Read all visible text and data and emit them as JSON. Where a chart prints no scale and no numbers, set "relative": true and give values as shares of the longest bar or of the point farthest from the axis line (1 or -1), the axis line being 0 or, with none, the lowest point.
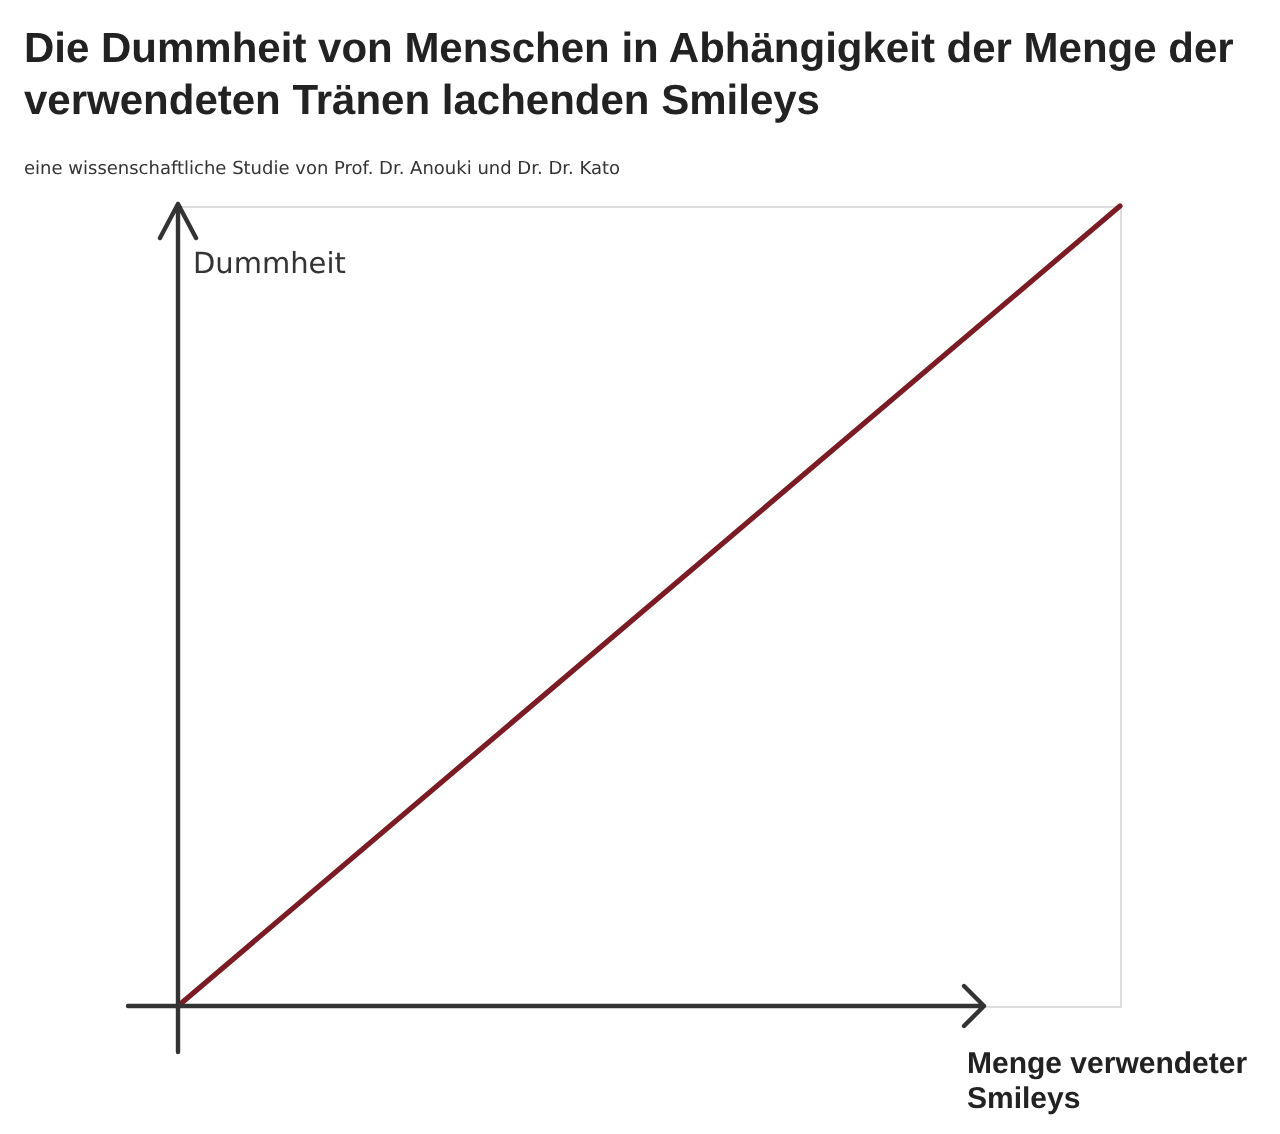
{
  "chart_data": {
    "type": "line",
    "title": "Die Dummheit von Menschen in Abhängigkeit der Menge der verwendeten Tränen lachenden Smileys",
    "subtitle": "eine wissenschaftliche Studie von Prof. Dr. Anouki und Dr. Dr. Kato",
    "xlabel": "Menge verwendeter Smileys",
    "ylabel": "Dummheit",
    "categories": [
      null,
      null
    ],
    "relative": true,
    "series": [
      {
        "color": "#7b1c24",
        "values": [
          0,
          1
        ]
      }
    ],
    "grid": false
  }
}
